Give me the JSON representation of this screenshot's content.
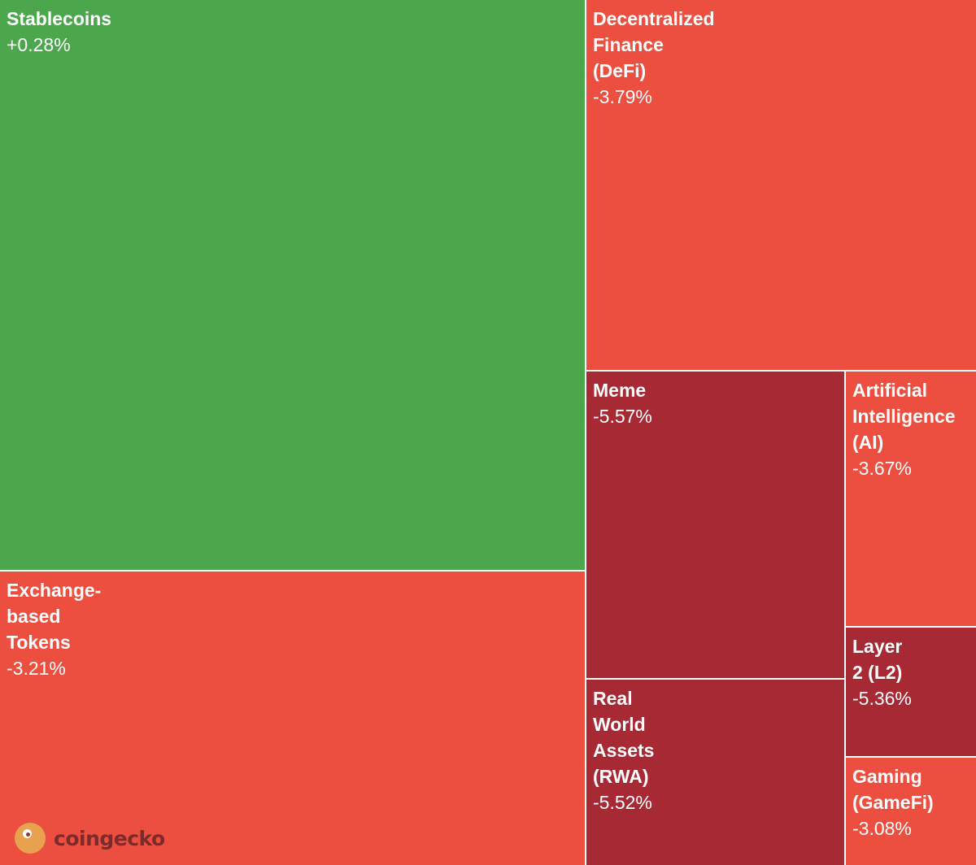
{
  "chart_data": {
    "type": "treemap",
    "title": "",
    "tiles": [
      {
        "name": "Stablecoins",
        "change": "+0.28%",
        "color": "#4ca64c"
      },
      {
        "name": "Exchange-\nbased\nTokens",
        "change": "-3.21%",
        "color": "#ec4f40"
      },
      {
        "name": "Decentralized\nFinance\n(DeFi)",
        "change": "-3.79%",
        "color": "#ec4f40"
      },
      {
        "name": "Meme",
        "change": "-5.57%",
        "color": "#a72934"
      },
      {
        "name": "Artificial\nIntelligence\n(AI)",
        "change": "-3.67%",
        "color": "#ec4f40"
      },
      {
        "name": "Real\nWorld\nAssets\n(RWA)",
        "change": "-5.52%",
        "color": "#a72934"
      },
      {
        "name": "Layer\n2 (L2)",
        "change": "-5.36%",
        "color": "#a72934"
      },
      {
        "name": "Gaming\n(GameFi)",
        "change": "-3.08%",
        "color": "#ec4f40"
      }
    ]
  },
  "logo": {
    "text": "coingecko",
    "icon": "coingecko-logo-icon"
  }
}
